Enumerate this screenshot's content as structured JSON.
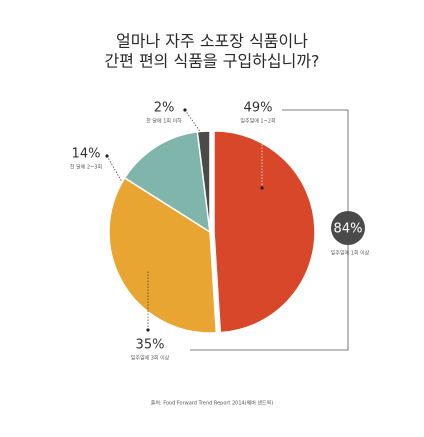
{
  "chart_data": {
    "type": "pie",
    "title": [
      "얼마나 자주 소포장 식품이나",
      "간편 편의 식품을 구입하십니까?"
    ],
    "categories": [
      "일주일에 1~2회",
      "일주일에 3회 이상",
      "한 달에 2~3회",
      "한 달에 1회 이하"
    ],
    "values": [
      49,
      35,
      14,
      2
    ],
    "value_labels": [
      "49%",
      "35%",
      "14%",
      "2%"
    ],
    "colors": [
      "#d9472b",
      "#e9a531",
      "#7fb5ab",
      "#4a4a4a"
    ],
    "annotation": {
      "value": 84,
      "value_label": "84%",
      "label": "일주일에 1회 이상"
    },
    "source": "출처: Food Forward Trend Report 2014(웨버 샌드윅)"
  }
}
